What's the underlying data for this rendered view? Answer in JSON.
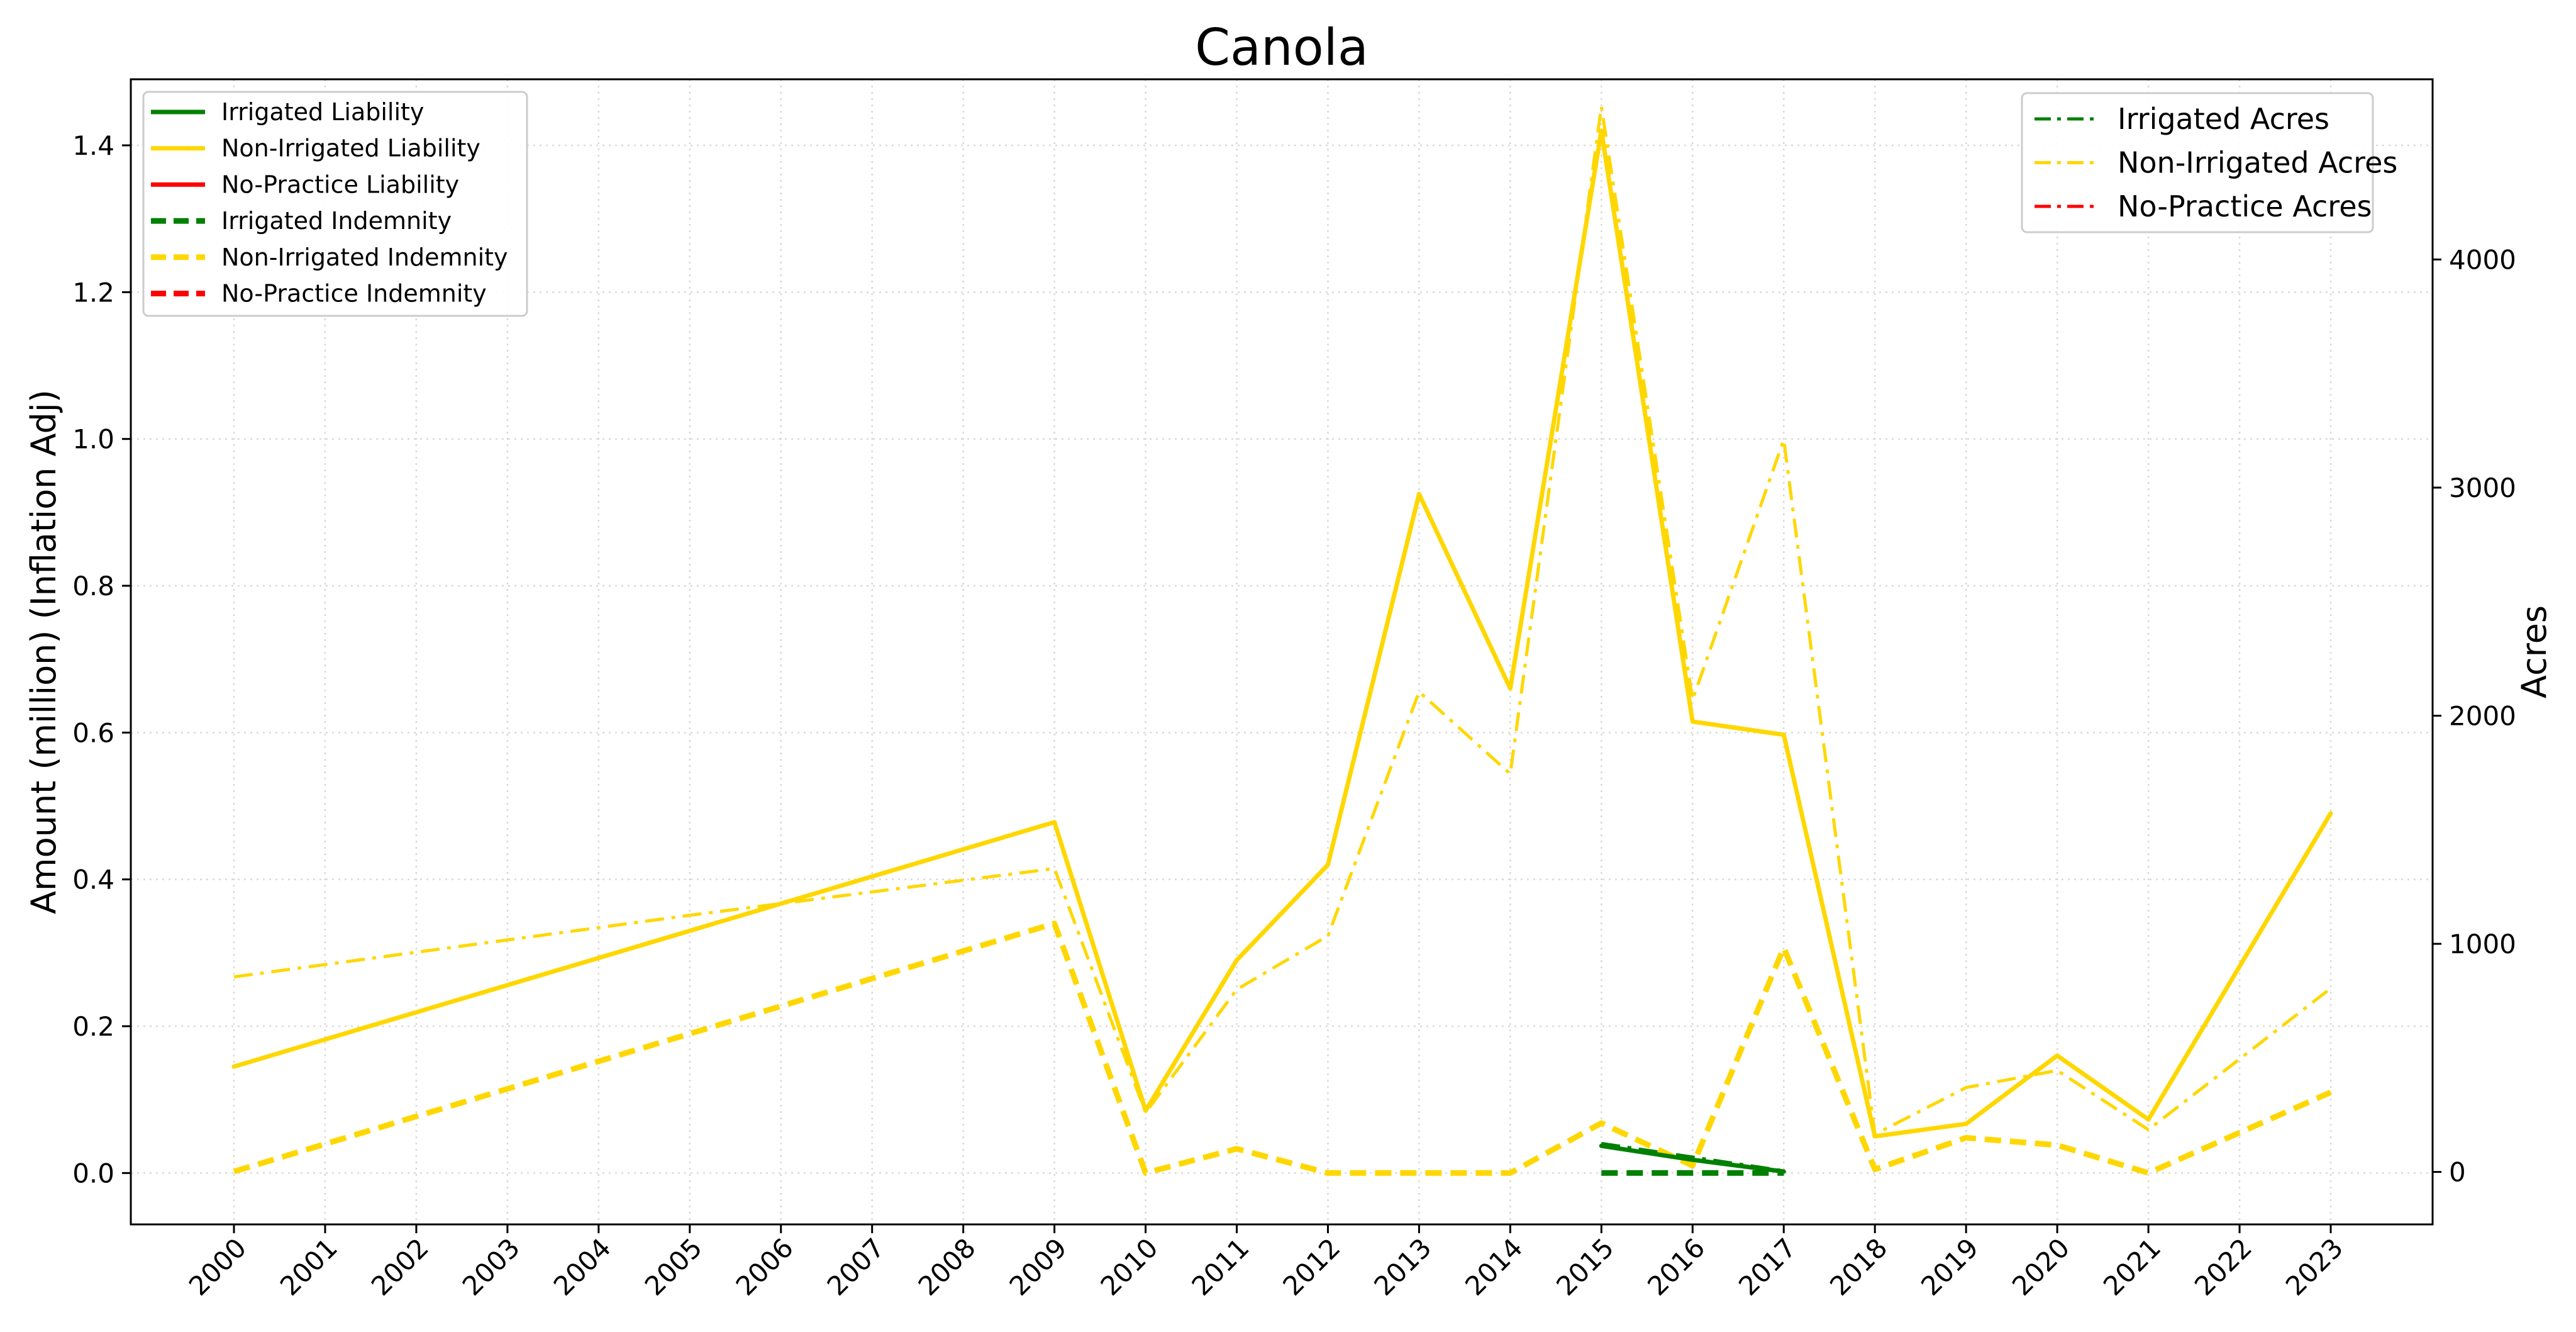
{
  "chart_data": {
    "type": "line",
    "title": "Canola",
    "ylabel": "Amount (million) (Inflation Adj)",
    "y2label": "Acres",
    "x": [
      "2000",
      "2001",
      "2002",
      "2003",
      "2004",
      "2005",
      "2006",
      "2007",
      "2008",
      "2009",
      "2010",
      "2011",
      "2012",
      "2013",
      "2014",
      "2015",
      "2016",
      "2017",
      "2018",
      "2019",
      "2020",
      "2021",
      "2022",
      "2023"
    ],
    "ylim": [
      -0.07,
      1.49
    ],
    "y2lim": [
      -230.0,
      4790.0
    ],
    "yticks": [
      0.0,
      0.2,
      0.4,
      0.6,
      0.8,
      1.0,
      1.2,
      1.4
    ],
    "y2ticks": [
      0,
      1000,
      2000,
      3000,
      4000
    ],
    "grid": true,
    "legend_left": [
      "Irrigated Liability",
      "Non-Irrigated Liability",
      "No-Practice Liability",
      "Irrigated Indemnity",
      "Non-Irrigated Indemnity",
      "No-Practice Indemnity"
    ],
    "legend_right": [
      "Irrigated Acres",
      "Non-Irrigated Acres",
      "No-Practice Acres"
    ],
    "legend_left_placement": "upper-left",
    "legend_right_placement": "upper-right",
    "colors": {
      "Irrigated": "#008000",
      "Non-Irrigated": "#FFD700",
      "No-Practice": "#FF0000"
    },
    "series": [
      {
        "name": "Irrigated Liability",
        "axis": "left",
        "style": "solid",
        "color": "#008000",
        "points": [
          [
            "2015",
            0.037
          ],
          [
            "2016",
            0.018
          ],
          [
            "2017",
            0.002
          ]
        ]
      },
      {
        "name": "Non-Irrigated Liability",
        "axis": "left",
        "style": "solid",
        "color": "#FFD700",
        "points": [
          [
            "2000",
            0.145
          ],
          [
            "2009",
            0.478
          ],
          [
            "2010",
            0.085
          ],
          [
            "2011",
            0.29
          ],
          [
            "2012",
            0.42
          ],
          [
            "2013",
            0.925
          ],
          [
            "2014",
            0.66
          ],
          [
            "2015",
            1.42
          ],
          [
            "2016",
            0.615
          ],
          [
            "2017",
            0.597
          ],
          [
            "2018",
            0.05
          ],
          [
            "2019",
            0.067
          ],
          [
            "2020",
            0.16
          ],
          [
            "2021",
            0.073
          ],
          [
            "2023",
            0.49
          ]
        ]
      },
      {
        "name": "No-Practice Liability",
        "axis": "left",
        "style": "solid",
        "color": "#FF0000",
        "points": []
      },
      {
        "name": "Irrigated Indemnity",
        "axis": "left",
        "style": "dashed",
        "color": "#008000",
        "points": [
          [
            "2015",
            0.0
          ],
          [
            "2016",
            0.0
          ],
          [
            "2017",
            0.0
          ]
        ]
      },
      {
        "name": "Non-Irrigated Indemnity",
        "axis": "left",
        "style": "dashed",
        "color": "#FFD700",
        "points": [
          [
            "2000",
            0.002
          ],
          [
            "2009",
            0.34
          ],
          [
            "2010",
            0.0
          ],
          [
            "2011",
            0.033
          ],
          [
            "2012",
            0.0
          ],
          [
            "2013",
            0.0
          ],
          [
            "2014",
            0.0
          ],
          [
            "2015",
            0.068
          ],
          [
            "2016",
            0.01
          ],
          [
            "2017",
            0.307
          ],
          [
            "2018",
            0.005
          ],
          [
            "2019",
            0.048
          ],
          [
            "2020",
            0.038
          ],
          [
            "2021",
            0.0
          ],
          [
            "2023",
            0.11
          ]
        ]
      },
      {
        "name": "No-Practice Indemnity",
        "axis": "left",
        "style": "dashed",
        "color": "#FF0000",
        "points": []
      },
      {
        "name": "Irrigated Acres",
        "axis": "right",
        "style": "dashdot",
        "color": "#008000",
        "points": [
          [
            "2015",
            125
          ],
          [
            "2016",
            65
          ],
          [
            "2017",
            5
          ]
        ]
      },
      {
        "name": "Non-Irrigated Acres",
        "axis": "right",
        "style": "dashdot",
        "color": "#FFD700",
        "points": [
          [
            "2000",
            855
          ],
          [
            "2005",
            1125
          ],
          [
            "2009",
            1330
          ],
          [
            "2010",
            260
          ],
          [
            "2011",
            800
          ],
          [
            "2012",
            1035
          ],
          [
            "2013",
            2105
          ],
          [
            "2014",
            1745
          ],
          [
            "2015",
            4670
          ],
          [
            "2016",
            2070
          ],
          [
            "2017",
            3210
          ],
          [
            "2018",
            165
          ],
          [
            "2019",
            370
          ],
          [
            "2020",
            445
          ],
          [
            "2021",
            185
          ],
          [
            "2023",
            805
          ]
        ]
      },
      {
        "name": "No-Practice Acres",
        "axis": "right",
        "style": "dashdot",
        "color": "#FF0000",
        "points": []
      }
    ]
  }
}
